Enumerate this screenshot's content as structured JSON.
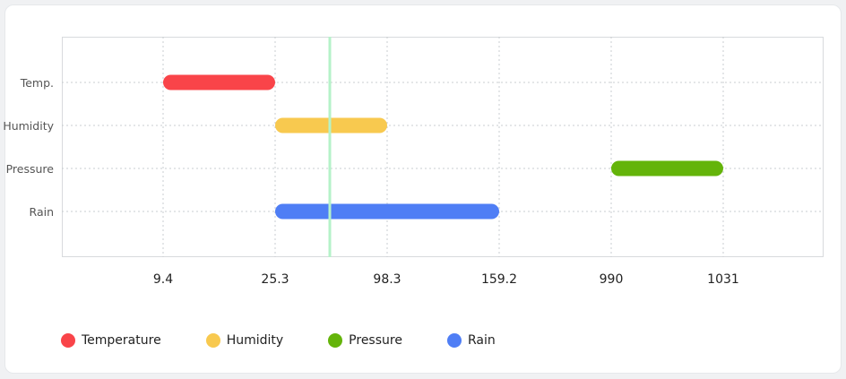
{
  "chart_data": {
    "type": "bar",
    "orientation": "horizontal-range",
    "categories": [
      "Temp.",
      "Humidity",
      "Pressure",
      "Rain"
    ],
    "x_ticks": [
      "9.4",
      "25.3",
      "98.3",
      "159.2",
      "990",
      "1031"
    ],
    "series": [
      {
        "name": "Temperature",
        "category": "Temp.",
        "start": 9.4,
        "end": 25.3,
        "color": "#f94449"
      },
      {
        "name": "Humidity",
        "category": "Humidity",
        "start": 25.3,
        "end": 98.3,
        "color": "#f8c94f"
      },
      {
        "name": "Pressure",
        "category": "Pressure",
        "start": 990,
        "end": 1031,
        "color": "#64b40a"
      },
      {
        "name": "Rain",
        "category": "Rain",
        "start": 25.3,
        "end": 159.2,
        "color": "#4f7ef5"
      }
    ],
    "marker_line_color": "#b5f2c9",
    "grid": true,
    "legend_position": "bottom-left"
  }
}
